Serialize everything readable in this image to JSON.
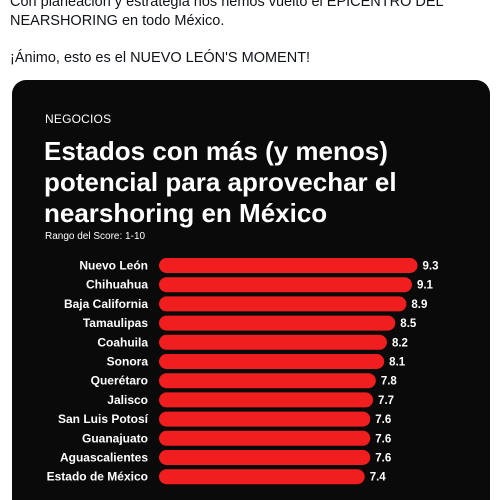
{
  "tweet": {
    "line1": "Con planeación y estrategia nos hemos vuelto el EPICENTRO DEL",
    "line2": "NEARSHORING en todo México.",
    "line3": "¡Ánimo, esto es el NUEVO LEÓN'S MOMENT!"
  },
  "media": {
    "category": "NEGOCIOS",
    "headline": "Estados con más (y menos) potencial para aprovechar el nearshoring en México",
    "subtitle": "Rango del Score: 1-10"
  },
  "colors": {
    "bar": "#f01e1e",
    "background": "#0a0a0a"
  },
  "chart_data": {
    "type": "bar",
    "orientation": "horizontal",
    "categories": [
      "Nuevo León",
      "Chihuahua",
      "Baja California",
      "Tamaulipas",
      "Coahuila",
      "Sonora",
      "Querétaro",
      "Jalisco",
      "San Luis Potosí",
      "Guanajuato",
      "Aguascalientes",
      "Estado de México"
    ],
    "values": [
      9.3,
      9.1,
      8.9,
      8.5,
      8.2,
      8.1,
      7.8,
      7.7,
      7.6,
      7.6,
      7.6,
      7.4
    ],
    "value_labels": [
      "9.3",
      "9.1",
      "8.9",
      "8.5",
      "8.2",
      "8.1",
      "7.8",
      "7.7",
      "7.6",
      "7.6",
      "7.6",
      "7.4"
    ],
    "xlim": [
      0,
      10
    ],
    "grid": false
  }
}
